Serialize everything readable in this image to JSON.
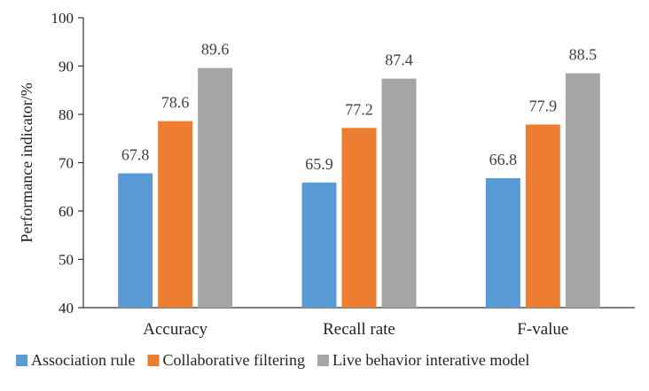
{
  "chart_data": {
    "type": "bar",
    "title": "",
    "xlabel": "",
    "ylabel": "Performance indicator/%",
    "ylim": [
      40,
      100
    ],
    "yticks": [
      40,
      50,
      60,
      70,
      80,
      90,
      100
    ],
    "grid": false,
    "legend_position": "bottom",
    "categories": [
      "Accuracy",
      "Recall rate",
      "F-value"
    ],
    "series": [
      {
        "name": "Association rule",
        "color": "#5B9BD5",
        "values": [
          67.8,
          65.9,
          66.8
        ]
      },
      {
        "name": "Collaborative filtering",
        "color": "#ED7D31",
        "values": [
          78.6,
          77.2,
          77.9
        ]
      },
      {
        "name": "Live behavior interative model",
        "color": "#A5A5A5",
        "values": [
          89.6,
          87.4,
          88.5
        ]
      }
    ]
  }
}
